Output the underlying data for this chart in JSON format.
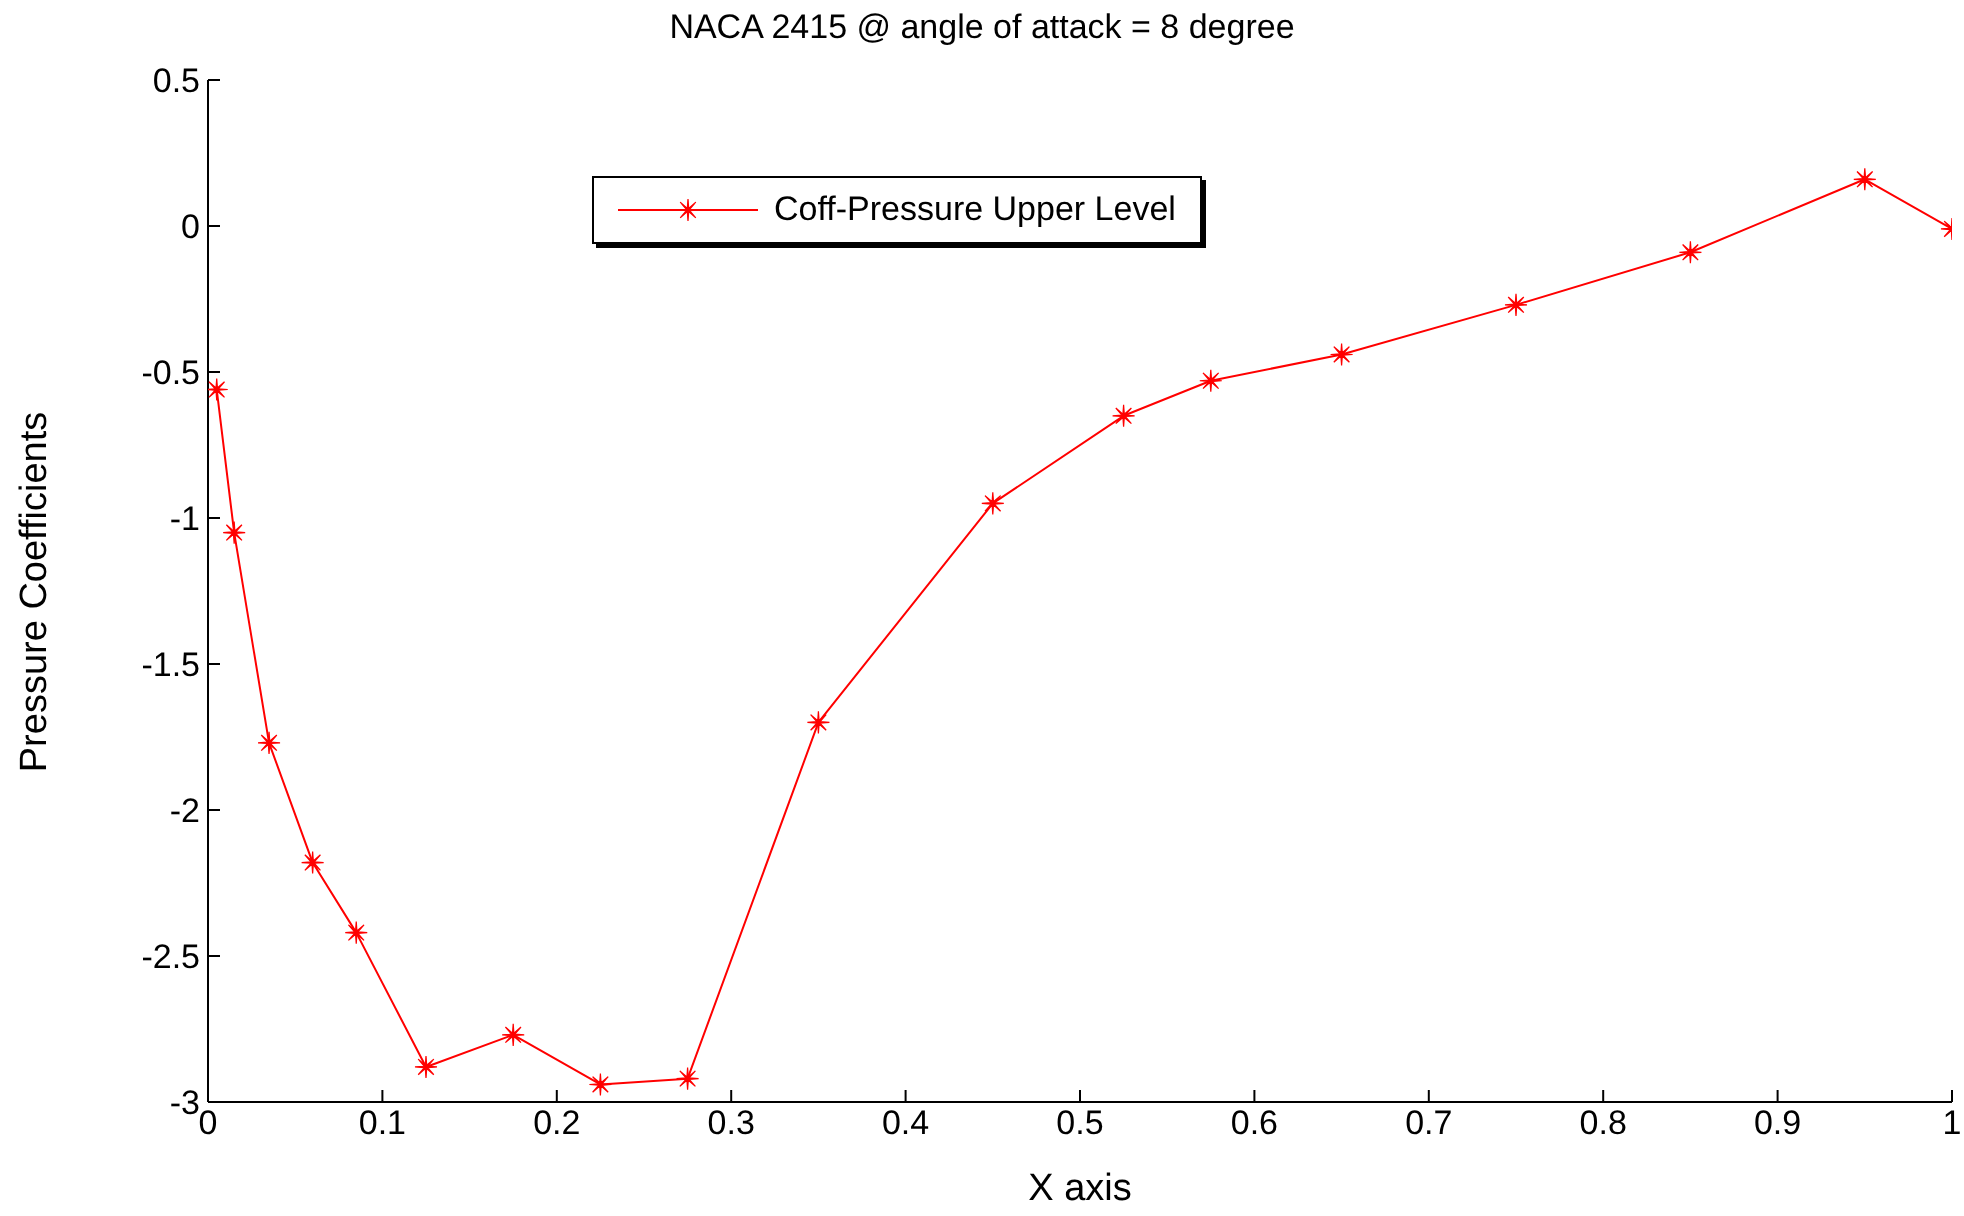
{
  "chart_data": {
    "type": "line",
    "title": "NACA 2415 @ angle of attack = 8 degree",
    "xlabel": "X axis",
    "ylabel": "Pressure Coefficients",
    "x": [
      0.005,
      0.015,
      0.035,
      0.06,
      0.085,
      0.125,
      0.175,
      0.225,
      0.275,
      0.35,
      0.45,
      0.525,
      0.575,
      0.65,
      0.75,
      0.85,
      0.95,
      1.0
    ],
    "series": [
      {
        "name": "Coff-Pressure Upper Level",
        "color": "#ff0000",
        "values": [
          -0.56,
          -1.05,
          -1.77,
          -2.18,
          -2.42,
          -2.88,
          -2.77,
          -2.94,
          -2.92,
          -1.7,
          -0.95,
          -0.65,
          -0.53,
          -0.44,
          -0.27,
          -0.09,
          0.16,
          -0.01
        ]
      }
    ],
    "xlim": [
      0,
      1
    ],
    "xticks": [
      0,
      0.1,
      0.2,
      0.3,
      0.4,
      0.5,
      0.6,
      0.7,
      0.8,
      0.9,
      1
    ],
    "ylim": [
      -3,
      0.5
    ],
    "yticks": [
      -3,
      -2.5,
      -2,
      -1.5,
      -1,
      -0.5,
      0,
      0.5
    ],
    "legend": "top",
    "marker": "star",
    "line_style": "solid",
    "grid": false
  }
}
